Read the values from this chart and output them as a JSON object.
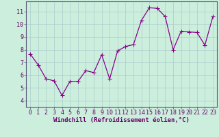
{
  "x": [
    0,
    1,
    2,
    3,
    4,
    5,
    6,
    7,
    8,
    9,
    10,
    11,
    12,
    13,
    14,
    15,
    16,
    17,
    18,
    19,
    20,
    21,
    22,
    23
  ],
  "y": [
    7.65,
    6.8,
    5.7,
    5.55,
    4.4,
    5.5,
    5.5,
    6.35,
    6.2,
    7.6,
    5.7,
    7.9,
    8.25,
    8.4,
    10.3,
    11.3,
    11.25,
    10.6,
    8.0,
    9.45,
    9.4,
    9.35,
    8.35,
    10.6
  ],
  "line_color": "#880088",
  "marker": "+",
  "marker_color": "#880088",
  "bg_color": "#cceedd",
  "grid_color": "#aacccc",
  "xlabel": "Windchill (Refroidissement éolien,°C)",
  "xlim": [
    -0.5,
    23.5
  ],
  "ylim": [
    3.5,
    11.8
  ],
  "yticks": [
    4,
    5,
    6,
    7,
    8,
    9,
    10,
    11
  ],
  "xticks": [
    0,
    1,
    2,
    3,
    4,
    5,
    6,
    7,
    8,
    9,
    10,
    11,
    12,
    13,
    14,
    15,
    16,
    17,
    18,
    19,
    20,
    21,
    22,
    23
  ],
  "xlabel_fontsize": 6.5,
  "tick_fontsize": 6.0,
  "tick_color": "#660066",
  "spine_color": "#555577",
  "marker_size": 4,
  "linewidth": 0.9
}
